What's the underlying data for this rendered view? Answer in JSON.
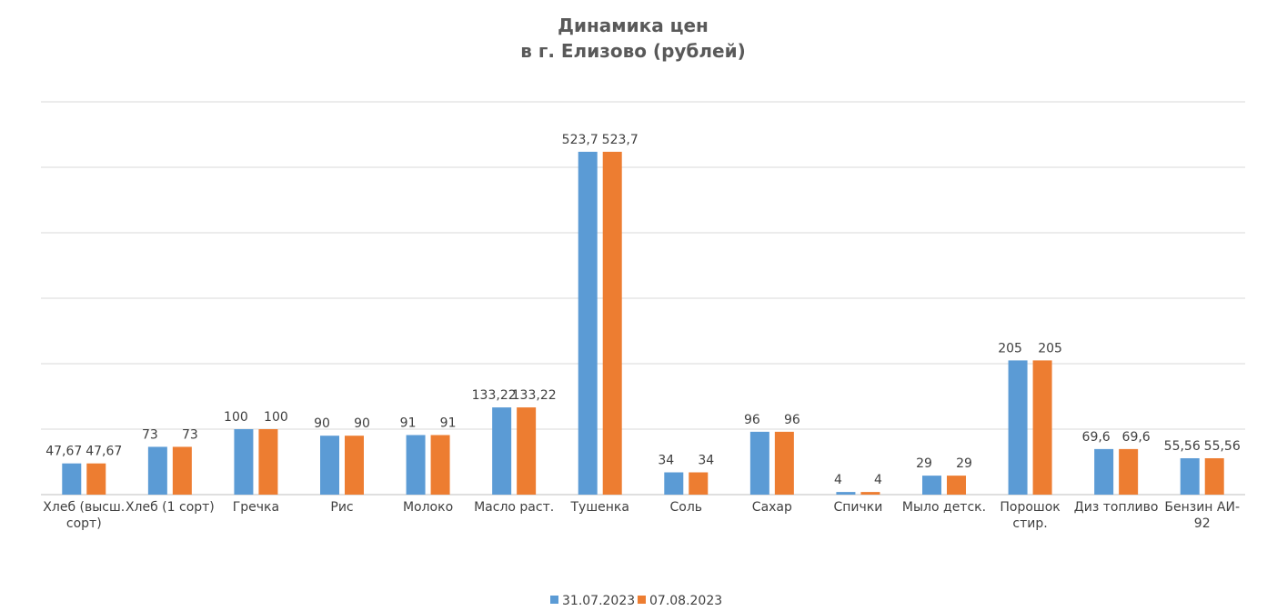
{
  "chart_data": {
    "type": "bar",
    "title_line1": "Динамика цен",
    "title_line2": "в г. Елизово (рублей)",
    "categories": [
      [
        "Хлеб (высш.",
        "сорт)"
      ],
      [
        "Хлеб (1 сорт)"
      ],
      [
        "Гречка"
      ],
      [
        "Рис"
      ],
      [
        "Молоко"
      ],
      [
        "Масло раст."
      ],
      [
        "Тушенка"
      ],
      [
        "Соль"
      ],
      [
        "Сахар"
      ],
      [
        "Спички"
      ],
      [
        "Мыло детск."
      ],
      [
        "Порошок",
        "стир."
      ],
      [
        "Диз топливо"
      ],
      [
        "Бензин АИ-",
        "92"
      ]
    ],
    "series": [
      {
        "name": "31.07.2023",
        "color": "#5B9BD5",
        "values": [
          47.67,
          73,
          100,
          90,
          91,
          133.22,
          523.7,
          34,
          96,
          4,
          29,
          205,
          69.6,
          55.56
        ],
        "labels": [
          "47,67",
          "73",
          "100",
          "90",
          "91",
          "133,22",
          "523,7",
          "34",
          "96",
          "4",
          "29",
          "205",
          "69,6",
          "55,56"
        ]
      },
      {
        "name": "07.08.2023",
        "color": "#ED7D31",
        "values": [
          47.67,
          73,
          100,
          90,
          91,
          133.22,
          523.7,
          34,
          96,
          4,
          29,
          205,
          69.6,
          55.56
        ],
        "labels": [
          "47,67",
          "73",
          "100",
          "90",
          "91",
          "133,22",
          "523,7",
          "34",
          "96",
          "4",
          "29",
          "205",
          "69,6",
          "55,56"
        ]
      }
    ],
    "ylim": [
      0,
      600
    ],
    "grid": true,
    "legend_position": "bottom"
  }
}
